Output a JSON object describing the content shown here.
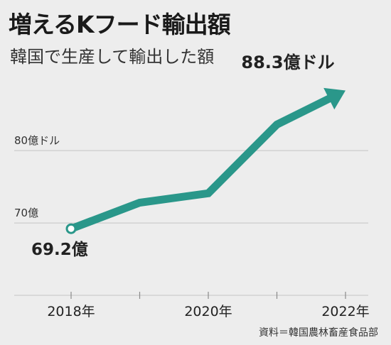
{
  "title": "増えるKフード輸出額",
  "subtitle": "韓国で生産して輸出した額",
  "source": "資料＝韓国農林畜産食品部",
  "colors": {
    "line": "#2a978a",
    "grid": "#c4c4c4",
    "background": "#ededed"
  },
  "chart_data": {
    "type": "line",
    "x": [
      2018,
      2019,
      2020,
      2021,
      2022
    ],
    "series": [
      {
        "values": [
          69.2,
          72.8,
          74.1,
          83.6,
          88.3
        ]
      }
    ],
    "xticks": [
      2018,
      2020,
      2022
    ],
    "xtick_labels": [
      "2018年",
      "2020年",
      "2022年"
    ],
    "yticks": [
      70,
      80
    ],
    "ytick_labels": [
      "70億",
      "80億ドル"
    ],
    "ylim": [
      60,
      91
    ],
    "xlim": [
      2018,
      2022.4
    ],
    "grid": true,
    "annotations": [
      {
        "x": 2018,
        "text": "69.2億"
      },
      {
        "x": 2022,
        "text": "88.3億ドル"
      }
    ],
    "ylabel": "",
    "xlabel": ""
  }
}
